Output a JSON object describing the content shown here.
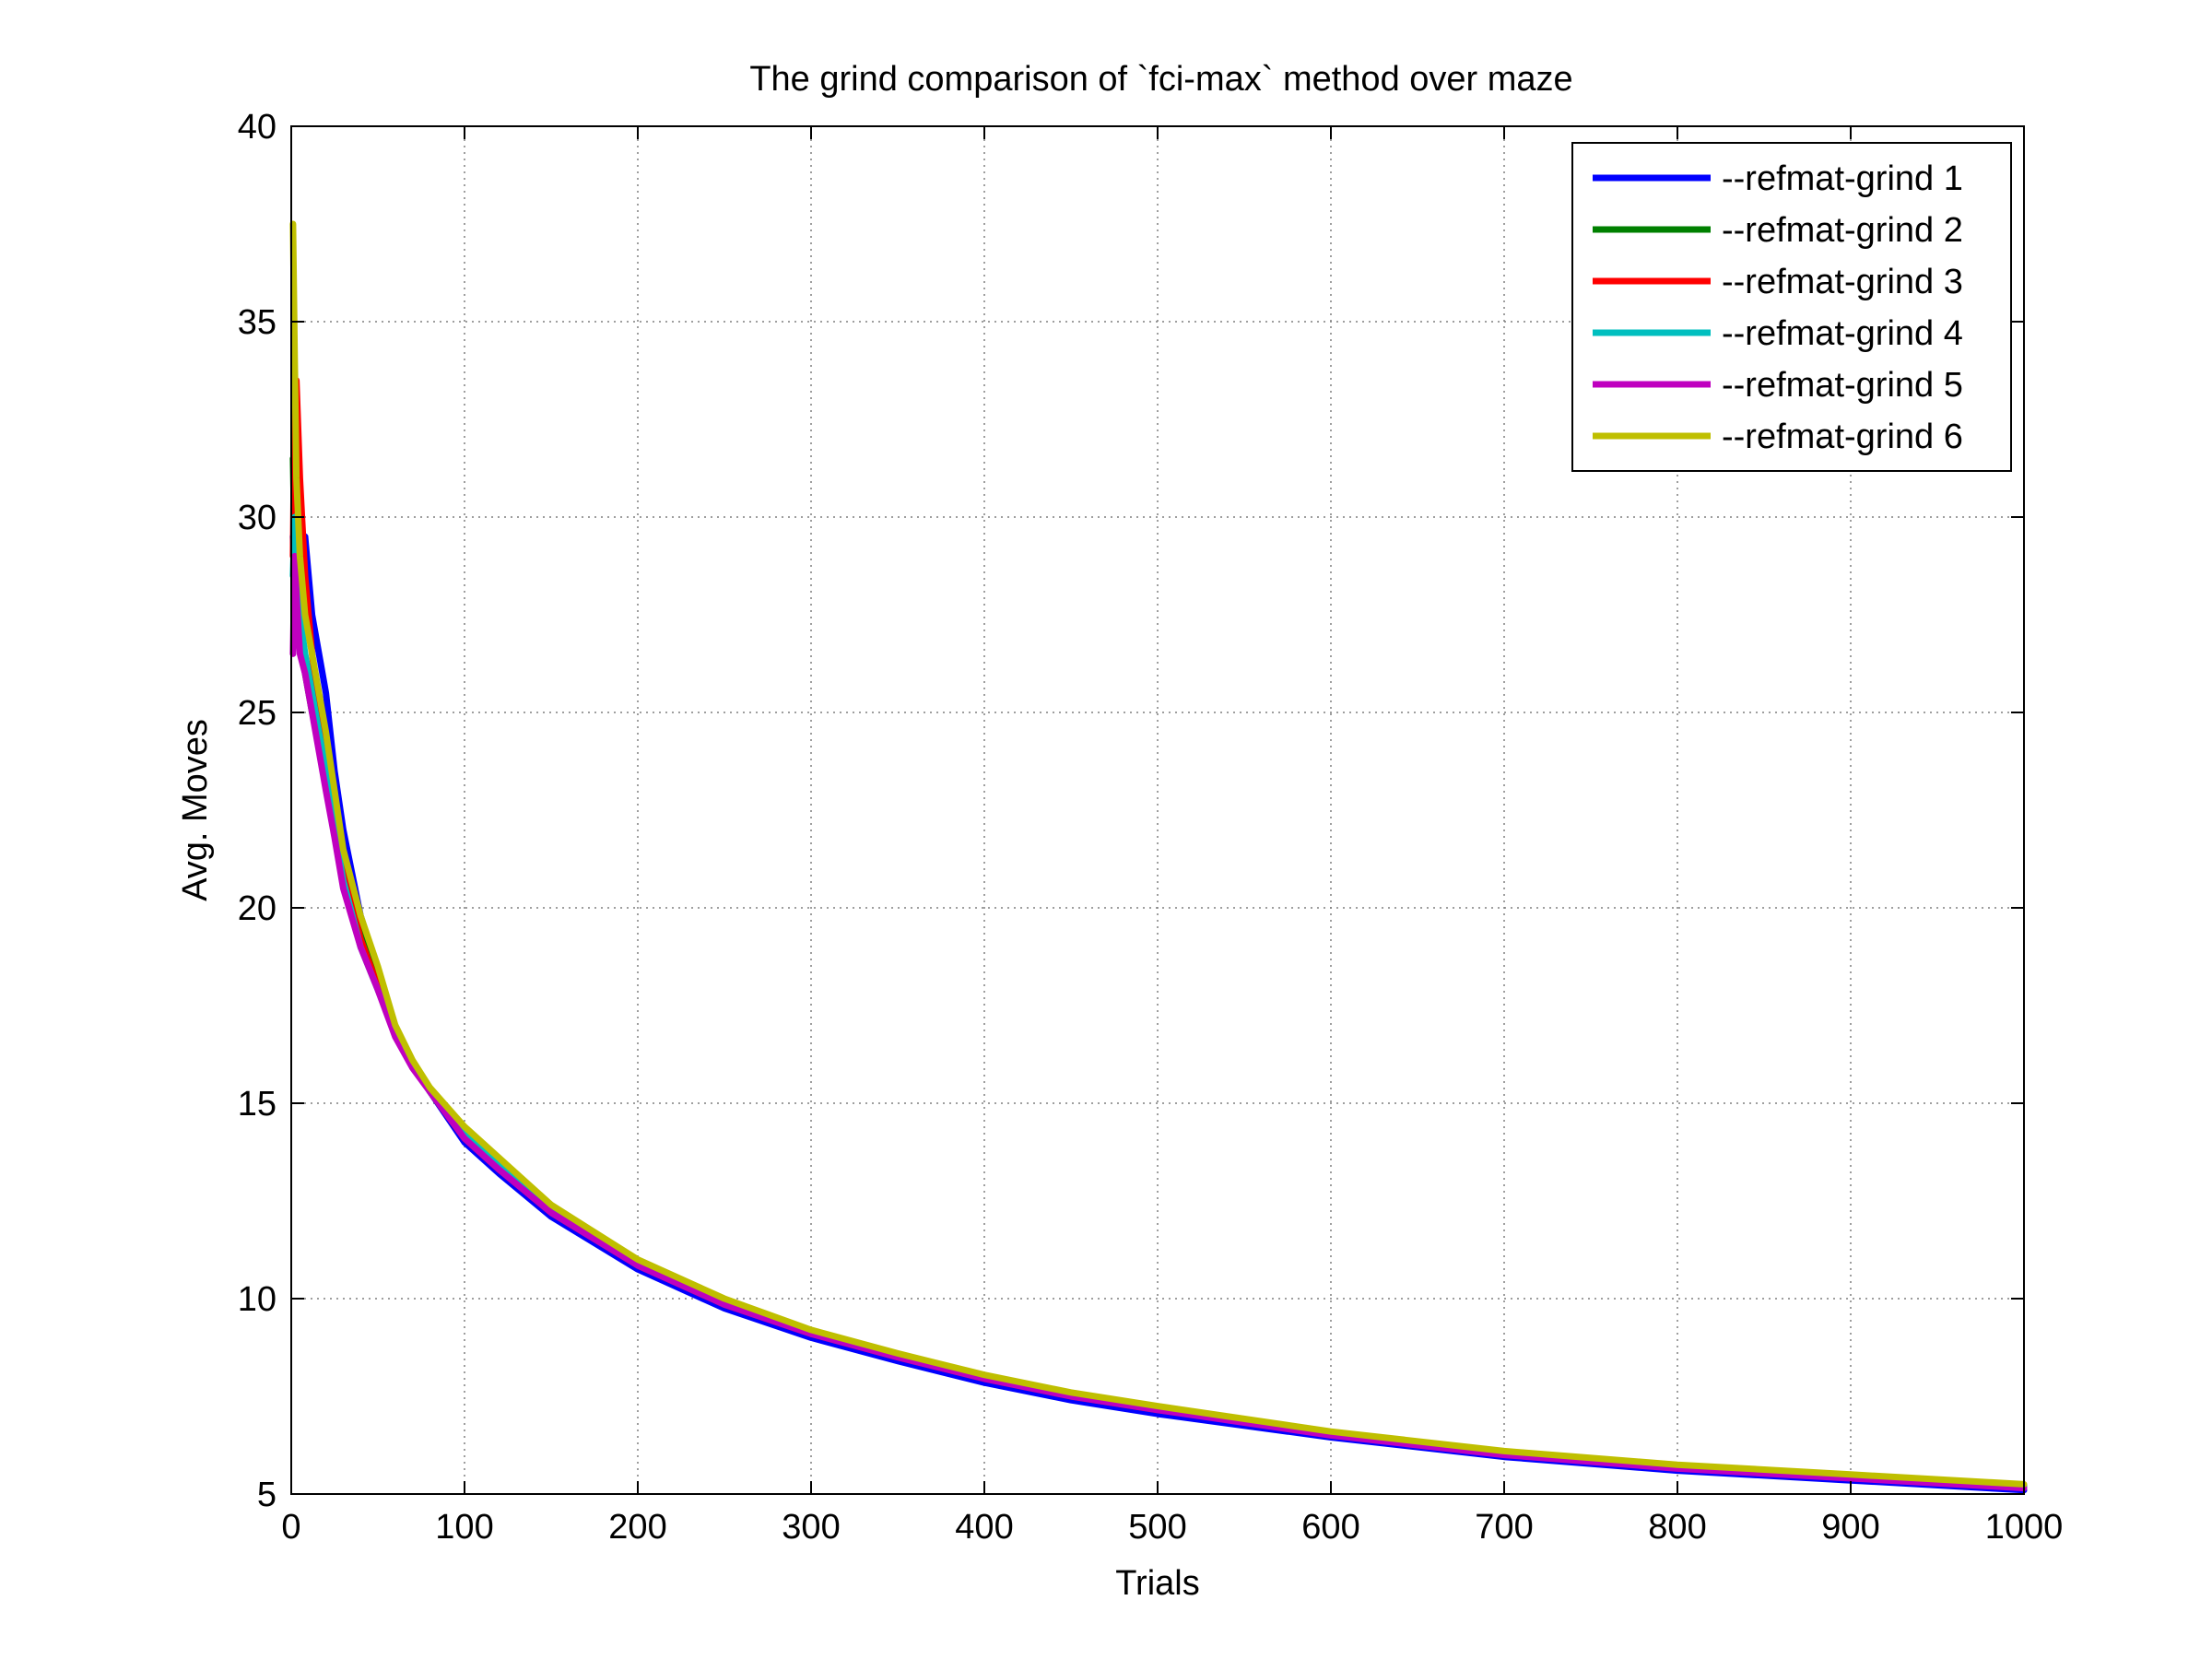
{
  "chart_data": {
    "type": "line",
    "title": "The grind comparison of `fci-max` method over maze",
    "xlabel": "Trials",
    "ylabel": "Avg. Moves",
    "xlim": [
      0,
      1000
    ],
    "ylim": [
      5,
      40
    ],
    "xticks": [
      0,
      100,
      200,
      300,
      400,
      500,
      600,
      700,
      800,
      900,
      1000
    ],
    "yticks": [
      5,
      10,
      15,
      20,
      25,
      30,
      35,
      40
    ],
    "grid": true,
    "legend_position": "top-right",
    "x": [
      1,
      2,
      3,
      5,
      8,
      12,
      16,
      20,
      25,
      30,
      40,
      50,
      60,
      70,
      80,
      100,
      120,
      150,
      200,
      250,
      300,
      350,
      400,
      450,
      500,
      600,
      700,
      800,
      900,
      1000
    ],
    "series": [
      {
        "name": "--refmat-grind 1",
        "color": "#0000ff",
        "values": [
          29.5,
          28.0,
          30.0,
          27.5,
          29.5,
          27.5,
          26.5,
          25.5,
          23.5,
          22.0,
          19.8,
          18.4,
          16.9,
          16.0,
          15.3,
          14.0,
          13.2,
          12.1,
          10.75,
          9.75,
          9.0,
          8.4,
          7.85,
          7.4,
          7.05,
          6.45,
          5.95,
          5.6,
          5.35,
          5.1
        ]
      },
      {
        "name": "--refmat-grind 2",
        "color": "#008000",
        "values": [
          31.5,
          29.0,
          28.5,
          27.0,
          26.0,
          25.0,
          24.5,
          23.8,
          22.5,
          21.2,
          19.5,
          18.3,
          16.9,
          16.0,
          15.3,
          14.1,
          13.3,
          12.2,
          10.85,
          9.85,
          9.1,
          8.5,
          7.95,
          7.5,
          7.15,
          6.55,
          6.05,
          5.7,
          5.45,
          5.2
        ]
      },
      {
        "name": "--refmat-grind 3",
        "color": "#ff0000",
        "values": [
          29.0,
          33.5,
          33.5,
          31.0,
          28.5,
          26.5,
          25.0,
          24.0,
          22.5,
          21.0,
          19.2,
          18.0,
          16.8,
          16.0,
          15.3,
          14.1,
          13.3,
          12.2,
          10.85,
          9.85,
          9.1,
          8.5,
          7.95,
          7.5,
          7.15,
          6.55,
          6.05,
          5.7,
          5.45,
          5.2
        ]
      },
      {
        "name": "--refmat-grind 4",
        "color": "#00bfbf",
        "values": [
          28.5,
          30.0,
          29.0,
          27.5,
          26.5,
          25.5,
          24.5,
          23.5,
          22.0,
          20.7,
          19.0,
          17.9,
          16.8,
          16.0,
          15.3,
          14.2,
          13.4,
          12.3,
          10.9,
          9.9,
          9.15,
          8.55,
          8.0,
          7.55,
          7.2,
          6.55,
          6.05,
          5.7,
          5.45,
          5.2
        ]
      },
      {
        "name": "--refmat-grind 5",
        "color": "#bf00bf",
        "values": [
          26.5,
          29.0,
          28.0,
          26.5,
          26.0,
          25.0,
          24.0,
          23.0,
          21.8,
          20.5,
          19.0,
          17.9,
          16.7,
          15.9,
          15.3,
          14.1,
          13.3,
          12.2,
          10.85,
          9.85,
          9.1,
          8.5,
          7.95,
          7.5,
          7.15,
          6.5,
          6.0,
          5.65,
          5.4,
          5.15
        ]
      },
      {
        "name": "--refmat-grind 6",
        "color": "#bfbf00",
        "values": [
          37.5,
          34.0,
          31.0,
          29.0,
          27.5,
          26.5,
          25.5,
          24.5,
          23.0,
          21.5,
          19.8,
          18.5,
          17.0,
          16.1,
          15.4,
          14.4,
          13.6,
          12.4,
          11.0,
          10.0,
          9.2,
          8.6,
          8.05,
          7.6,
          7.25,
          6.6,
          6.1,
          5.75,
          5.5,
          5.25
        ]
      }
    ]
  }
}
